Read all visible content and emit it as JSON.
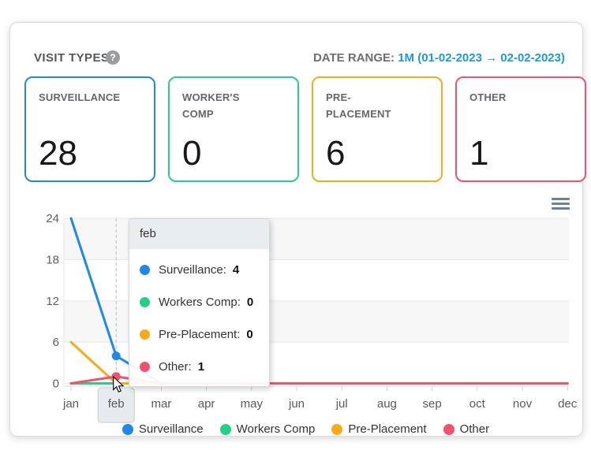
{
  "header": {
    "title": "VISIT TYPES",
    "help_icon_glyph": "?",
    "date_range_label": "DATE RANGE:",
    "date_range_value": "1M (01-02-2023 → 02-02-2023)",
    "link_color": "#1d9ad6"
  },
  "summary_cards": [
    {
      "label": "SURVEILLANCE",
      "value": "28",
      "color": "#1e87f0"
    },
    {
      "label": "WORKER'S COMP",
      "value": "0",
      "color": "#21d286"
    },
    {
      "label": "PRE-PLACEMENT",
      "value": "6",
      "color": "#f8ab18"
    },
    {
      "label": "OTHER",
      "value": "1",
      "color": "#f4516c"
    }
  ],
  "chart_data": {
    "type": "line",
    "title": "",
    "xlabel": "",
    "ylabel": "",
    "categories": [
      "jan",
      "feb",
      "mar",
      "apr",
      "may",
      "jun",
      "jul",
      "aug",
      "sep",
      "oct",
      "nov",
      "dec"
    ],
    "series": [
      {
        "name": "Surveillance",
        "color": "#1e87f0",
        "values": [
          24,
          4,
          0,
          0,
          0,
          0,
          0,
          0,
          0,
          0,
          0,
          0
        ]
      },
      {
        "name": "Workers Comp",
        "color": "#21d286",
        "values": [
          0,
          0,
          0,
          0,
          0,
          0,
          0,
          0,
          0,
          0,
          0,
          0
        ]
      },
      {
        "name": "Pre-Placement",
        "color": "#f8ab18",
        "values": [
          6,
          0,
          0,
          0,
          0,
          0,
          0,
          0,
          0,
          0,
          0,
          0
        ]
      },
      {
        "name": "Other",
        "color": "#f4516c",
        "values": [
          0,
          1,
          0,
          0,
          0,
          0,
          0,
          0,
          0,
          0,
          0,
          0
        ]
      }
    ],
    "yticks": [
      0,
      6,
      12,
      18,
      24
    ],
    "ylim": [
      0,
      24
    ],
    "grid": true,
    "alternating_bands": true,
    "legend_position": "bottom",
    "highlighted_category": "feb"
  },
  "tooltip": {
    "title": "feb",
    "rows": [
      {
        "label": "Surveillance:",
        "value": "4",
        "color": "#1e87f0"
      },
      {
        "label": "Workers Comp:",
        "value": "0",
        "color": "#21d286"
      },
      {
        "label": "Pre-Placement:",
        "value": "0",
        "color": "#f8ab18"
      },
      {
        "label": "Other:",
        "value": "1",
        "color": "#f4516c"
      }
    ]
  }
}
